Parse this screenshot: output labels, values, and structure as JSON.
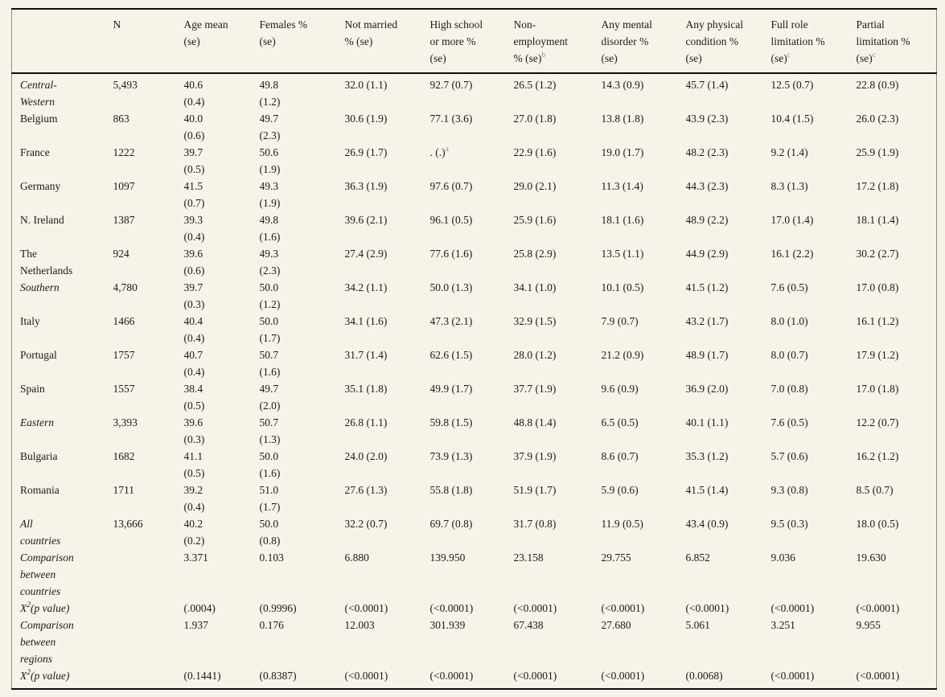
{
  "table": {
    "description": "Descriptives table by country and region",
    "footnote_marker_color": "#4aa0d6",
    "columns": [
      {
        "label": ""
      },
      {
        "label": "N"
      },
      {
        "label": "Age mean\n(se)"
      },
      {
        "label": "Females %\n(se)"
      },
      {
        "label": "Not married\n% (se)"
      },
      {
        "label": "High school\nor more %\n(se)"
      },
      {
        "label": "Non-\nemployment\n% (se)",
        "sup": "b"
      },
      {
        "label": "Any mental\ndisorder %\n(se)"
      },
      {
        "label": "Any physical\ncondition %\n(se)"
      },
      {
        "label": "Full role\nlimitation %\n(se)",
        "sup": "c"
      },
      {
        "label": "Partial\nlimitation %\n(se)",
        "sup": "c"
      }
    ],
    "rows": [
      {
        "label": "Central-\nWestern",
        "italic": true,
        "cells": [
          "5,493",
          "40.6\n(0.4)",
          "49.8\n(1.2)",
          "32.0 (1.1)",
          "92.7 (0.7)",
          "26.5 (1.2)",
          "14.3 (0.9)",
          "45.7 (1.4)",
          "12.5 (0.7)",
          "22.8 (0.9)"
        ]
      },
      {
        "label": "Belgium",
        "italic": false,
        "cells": [
          "863",
          "40.0\n(0.6)",
          "49.7\n(2.3)",
          "30.6 (1.9)",
          "77.1 (3.6)",
          "27.0 (1.8)",
          "13.8 (1.8)",
          "43.9 (2.3)",
          "10.4 (1.5)",
          "26.0 (2.3)"
        ]
      },
      {
        "label": "France",
        "italic": false,
        "cells": [
          "1222",
          "39.7\n(0.5)",
          "50.6\n(1.9)",
          "26.9 (1.7)",
          [
            {
              "t": ". (.)"
            },
            {
              "s": "a",
              "blue": true
            }
          ],
          "22.9 (1.6)",
          "19.0 (1.7)",
          "48.2 (2.3)",
          "9.2 (1.4)",
          "25.9 (1.9)"
        ]
      },
      {
        "label": "Germany",
        "italic": false,
        "cells": [
          "1097",
          "41.5\n(0.7)",
          "49.3\n(1.9)",
          "36.3 (1.9)",
          "97.6 (0.7)",
          "29.0 (2.1)",
          "11.3 (1.4)",
          "44.3 (2.3)",
          "8.3 (1.3)",
          "17.2 (1.8)"
        ]
      },
      {
        "label": "N. Ireland",
        "italic": false,
        "cells": [
          "1387",
          "39.3\n(0.4)",
          "49.8\n(1.6)",
          "39.6 (2.1)",
          "96.1 (0.5)",
          "25.9 (1.6)",
          "18.1 (1.6)",
          "48.9 (2.2)",
          "17.0 (1.4)",
          "18.1 (1.4)"
        ]
      },
      {
        "label": "The\nNetherlands",
        "italic": false,
        "cells": [
          "924",
          "39.6\n(0.6)",
          "49.3\n(2.3)",
          "27.4 (2.9)",
          "77.6 (1.6)",
          "25.8 (2.9)",
          "13.5 (1.1)",
          "44.9 (2.9)",
          "16.1 (2.2)",
          "30.2 (2.7)"
        ]
      },
      {
        "label": "Southern",
        "italic": true,
        "cells": [
          "4,780",
          "39.7\n(0.3)",
          "50.0\n(1.2)",
          "34.2 (1.1)",
          "50.0 (1.3)",
          "34.1 (1.0)",
          "10.1 (0.5)",
          "41.5 (1.2)",
          "7.6 (0.5)",
          "17.0 (0.8)"
        ]
      },
      {
        "label": "Italy",
        "italic": false,
        "cells": [
          "1466",
          "40.4\n(0.4)",
          "50.0\n(1.7)",
          "34.1 (1.6)",
          "47.3 (2.1)",
          "32.9 (1.5)",
          "7.9 (0.7)",
          "43.2 (1.7)",
          "8.0 (1.0)",
          "16.1 (1.2)"
        ]
      },
      {
        "label": "Portugal",
        "italic": false,
        "cells": [
          "1757",
          "40.7\n(0.4)",
          "50.7\n(1.6)",
          "31.7 (1.4)",
          "62.6 (1.5)",
          "28.0 (1.2)",
          "21.2 (0.9)",
          "48.9 (1.7)",
          "8.0 (0.7)",
          "17.9 (1.2)"
        ]
      },
      {
        "label": "Spain",
        "italic": false,
        "cells": [
          "1557",
          "38.4\n(0.5)",
          "49.7\n(2.0)",
          "35.1 (1.8)",
          "49.9 (1.7)",
          "37.7 (1.9)",
          "9.6 (0.9)",
          "36.9 (2.0)",
          "7.0 (0.8)",
          "17.0 (1.8)"
        ]
      },
      {
        "label": "Eastern",
        "italic": true,
        "cells": [
          "3,393",
          "39.6\n(0.3)",
          "50.7\n(1.3)",
          "26.8 (1.1)",
          "59.8 (1.5)",
          "48.8 (1.4)",
          "6.5 (0.5)",
          "40.1 (1.1)",
          "7.6 (0.5)",
          "12.2 (0.7)"
        ]
      },
      {
        "label": "Bulgaria",
        "italic": false,
        "cells": [
          "1682",
          "41.1\n(0.5)",
          "50.0\n(1.6)",
          "24.0 (2.0)",
          "73.9 (1.3)",
          "37.9 (1.9)",
          "8.6 (0.7)",
          "35.3 (1.2)",
          "5.7 (0.6)",
          "16.2 (1.2)"
        ]
      },
      {
        "label": "Romania",
        "italic": false,
        "cells": [
          "1711",
          "39.2\n(0.4)",
          "51.0\n(1.7)",
          "27.6 (1.3)",
          "55.8 (1.8)",
          "51.9 (1.7)",
          "5.9 (0.6)",
          "41.5 (1.4)",
          "9.3 (0.8)",
          "8.5 (0.7)"
        ]
      },
      {
        "label": "All\ncountries",
        "italic": true,
        "cells": [
          "13,666",
          "40.2\n(0.2)",
          "50.0\n(0.8)",
          "32.2 (0.7)",
          "69.7 (0.8)",
          "31.7 (0.8)",
          "11.9 (0.5)",
          "43.4 (0.9)",
          "9.5 (0.3)",
          "18.0 (0.5)"
        ]
      },
      {
        "label": "Comparison\nbetween\ncountries",
        "italic": true,
        "cells": [
          "",
          "3.371",
          "0.103",
          "6.880",
          "139.950",
          "23.158",
          "29.755",
          "6.852",
          "9.036",
          "19.630"
        ]
      },
      {
        "label": [
          {
            "t": "X"
          },
          {
            "s": "2"
          },
          {
            "t": "(p value)"
          }
        ],
        "italic": true,
        "cells": [
          "",
          "(.0004)",
          "(0.9996)",
          "(<0.0001)",
          "(<0.0001)",
          "(<0.0001)",
          "(<0.0001)",
          "(<0.0001)",
          "(<0.0001)",
          "(<0.0001)"
        ]
      },
      {
        "label": "Comparison\nbetween\nregions",
        "italic": true,
        "cells": [
          "",
          "1.937",
          "0.176",
          "12.003",
          "301.939",
          "67.438",
          "27.680",
          "5.061",
          "3.251",
          "9.955"
        ]
      },
      {
        "label": [
          {
            "t": "X"
          },
          {
            "s": "2"
          },
          {
            "t": "(p value)"
          }
        ],
        "italic": true,
        "cells": [
          "",
          "(0.1441)",
          "(0.8387)",
          "(<0.0001)",
          "(<0.0001)",
          "(<0.0001)",
          "(<0.0001)",
          "(0.0068)",
          "(<0.0001)",
          "(<0.0001)"
        ]
      }
    ]
  }
}
